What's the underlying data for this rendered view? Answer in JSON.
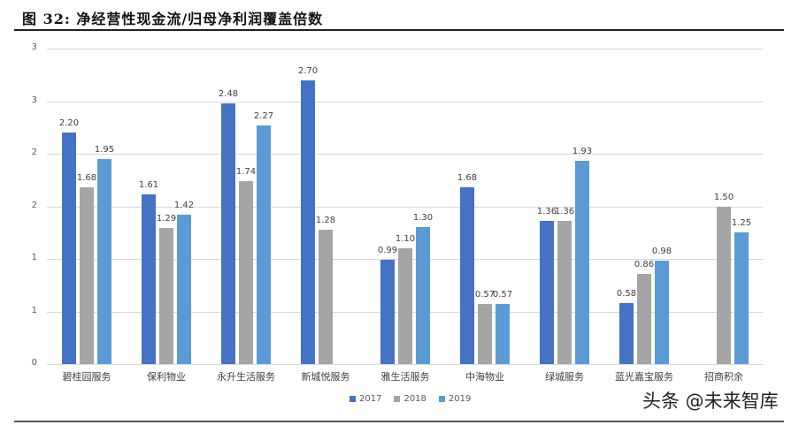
{
  "title": "图 32:  净经营性现金流/归母净利润覆盖倍数",
  "watermark": "头条 @未来智库",
  "colors": {
    "2017": "#4472C4",
    "2018": "#A5A5A5",
    "2019": "#5B9BD5"
  },
  "y_tick_labels": [
    "0",
    "1",
    "1",
    "2",
    "2",
    "3",
    "3"
  ],
  "chart_data": {
    "type": "bar",
    "title": "净经营性现金流/归母净利润覆盖倍数",
    "xlabel": "",
    "ylabel": "",
    "ylim": [
      0,
      3
    ],
    "y_gridlines": [
      0,
      0.5,
      1,
      1.5,
      2,
      2.5,
      3
    ],
    "y_tick_labels": [
      "0",
      "1",
      "1",
      "2",
      "2",
      "3",
      "3"
    ],
    "grid": true,
    "legend_position": "bottom",
    "categories": [
      "碧桂园服务",
      "保利物业",
      "永升生活服务",
      "新城悦服务",
      "雅生活服务",
      "中海物业",
      "绿城服务",
      "蓝光嘉宝服务",
      "招商积余"
    ],
    "series": [
      {
        "name": "2017",
        "values": [
          2.2,
          1.61,
          2.48,
          2.7,
          0.99,
          1.68,
          1.36,
          0.58,
          null
        ]
      },
      {
        "name": "2018",
        "values": [
          1.68,
          1.29,
          1.74,
          1.28,
          1.1,
          0.57,
          1.36,
          0.86,
          1.5
        ]
      },
      {
        "name": "2019",
        "values": [
          1.95,
          1.42,
          2.27,
          null,
          1.3,
          0.57,
          1.93,
          0.98,
          1.25
        ]
      }
    ]
  }
}
